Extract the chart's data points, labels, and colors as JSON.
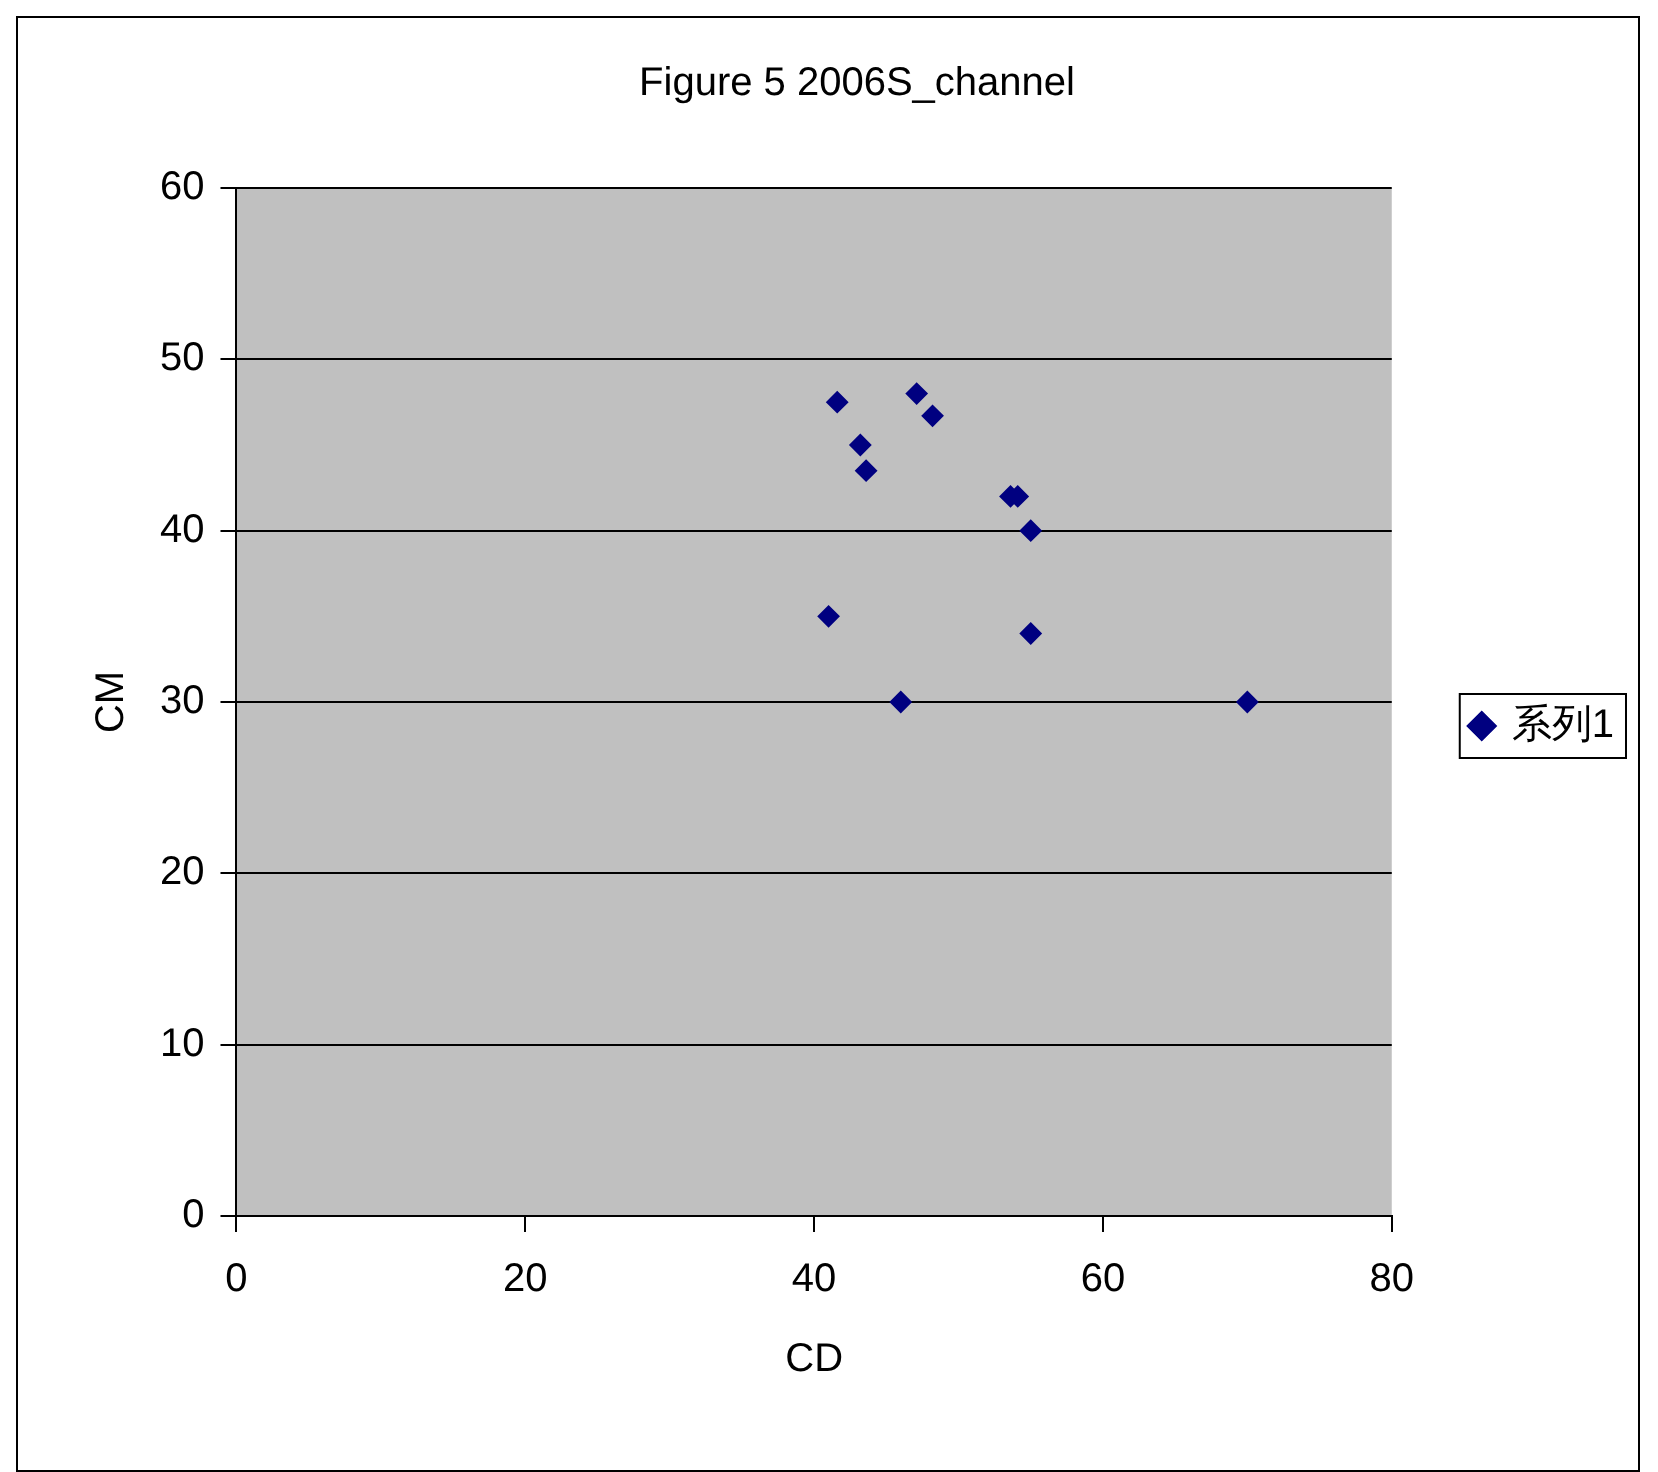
{
  "chart_data": {
    "type": "scatter",
    "title": "Figure 5 2006S_channel",
    "xlabel": "CD",
    "ylabel": "CM",
    "series": [
      {
        "name": "系列1",
        "color": "#000080",
        "x": [
          41.6,
          47.1,
          48.2,
          43.2,
          43.6,
          53.6,
          54.1,
          55,
          41,
          55,
          46,
          70
        ],
        "values": [
          47.5,
          48,
          46.7,
          45,
          43.5,
          42,
          42,
          40,
          35,
          34,
          30,
          30
        ]
      }
    ],
    "xlim": [
      0,
      80
    ],
    "xticks": [
      0,
      20,
      40,
      60,
      80
    ],
    "ylim": [
      0,
      60
    ],
    "yticks": [
      0,
      10,
      20,
      30,
      40,
      50,
      60
    ],
    "grid": "y",
    "legend": "right",
    "marker": "diamond"
  }
}
